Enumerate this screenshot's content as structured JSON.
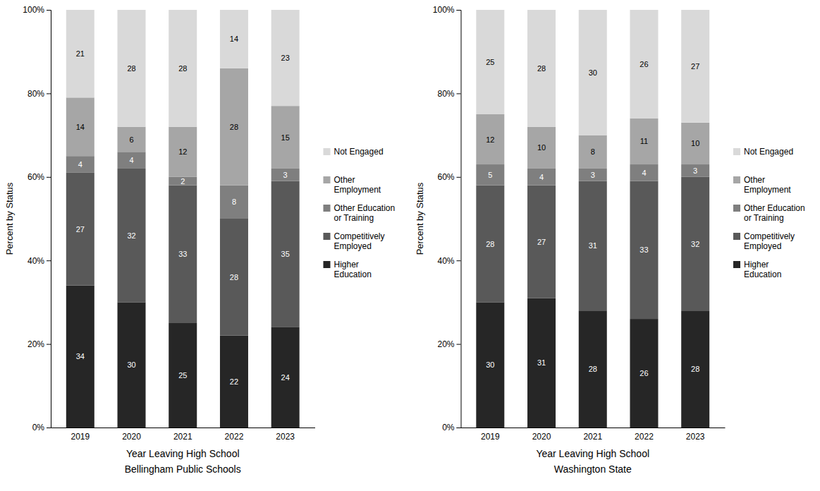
{
  "chart_data": [
    {
      "type": "bar",
      "stacked": true,
      "data_labels": true,
      "grid": false,
      "legend": "right",
      "title": "Bellingham Public Schools",
      "x_label": "Year Leaving High School",
      "y_label": "Percent by Status",
      "categories": [
        "2019",
        "2020",
        "2021",
        "2022",
        "2023"
      ],
      "ylim": [
        0,
        100
      ],
      "yticks": [
        {
          "value": 0,
          "label": "0%"
        },
        {
          "value": 20,
          "label": "20%"
        },
        {
          "value": 40,
          "label": "40%"
        },
        {
          "value": 60,
          "label": "60%"
        },
        {
          "value": 80,
          "label": "80%"
        },
        {
          "value": 100,
          "label": "100%"
        }
      ],
      "series": [
        {
          "name": "Higher Education",
          "color": "#262626",
          "values": [
            34,
            30,
            25,
            22,
            24
          ]
        },
        {
          "name": "Competitively Employed",
          "color": "#595959",
          "values": [
            27,
            32,
            33,
            28,
            35
          ]
        },
        {
          "name": "Other Education or Training",
          "color": "#7f7f7f",
          "values": [
            4,
            4,
            2,
            8,
            3
          ]
        },
        {
          "name": "Other Employment",
          "color": "#a6a6a6",
          "values": [
            14,
            6,
            12,
            28,
            15
          ]
        },
        {
          "name": "Not Engaged",
          "color": "#d9d9d9",
          "values": [
            21,
            28,
            28,
            14,
            23
          ]
        }
      ]
    },
    {
      "type": "bar",
      "stacked": true,
      "data_labels": true,
      "grid": false,
      "legend": "right",
      "title": "Washington State",
      "x_label": "Year Leaving High School",
      "y_label": "Percent by Status",
      "categories": [
        "2019",
        "2020",
        "2021",
        "2022",
        "2023"
      ],
      "ylim": [
        0,
        100
      ],
      "yticks": [
        {
          "value": 0,
          "label": "0%"
        },
        {
          "value": 20,
          "label": "20%"
        },
        {
          "value": 40,
          "label": "40%"
        },
        {
          "value": 60,
          "label": "60%"
        },
        {
          "value": 80,
          "label": "80%"
        },
        {
          "value": 100,
          "label": "100%"
        }
      ],
      "series": [
        {
          "name": "Higher Education",
          "color": "#262626",
          "values": [
            30,
            31,
            28,
            26,
            28
          ]
        },
        {
          "name": "Competitively Employed",
          "color": "#595959",
          "values": [
            28,
            27,
            31,
            33,
            32
          ]
        },
        {
          "name": "Other Education or Training",
          "color": "#7f7f7f",
          "values": [
            5,
            4,
            3,
            4,
            3
          ]
        },
        {
          "name": "Other Employment",
          "color": "#a6a6a6",
          "values": [
            12,
            10,
            8,
            11,
            10
          ]
        },
        {
          "name": "Not Engaged",
          "color": "#d9d9d9",
          "values": [
            25,
            28,
            30,
            26,
            27
          ]
        }
      ]
    }
  ]
}
